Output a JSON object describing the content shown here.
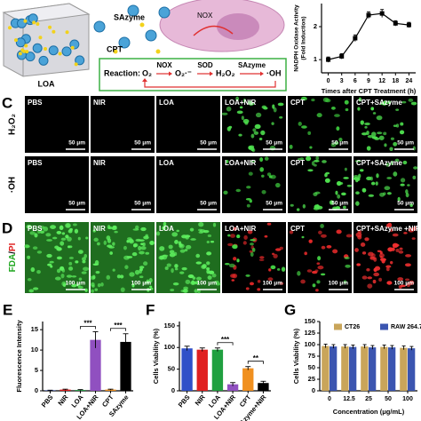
{
  "schematic": {
    "nanoparticle": "SAzyme",
    "drug": "CPT",
    "carrier": "LOA",
    "enzyme_in_cell": "NOX",
    "reaction": {
      "label": "Reaction:",
      "species": [
        "O₂",
        "O₂·⁻",
        "H₂O₂",
        "·OH"
      ],
      "enzymes": [
        "NOX",
        "SOD",
        "SAzyme"
      ]
    }
  },
  "panel_c": {
    "letter": "C",
    "rows": [
      "H₂O₂",
      "·OH"
    ],
    "columns": [
      "PBS",
      "NIR",
      "LOA",
      "LOA+NIR",
      "CPT",
      "CPT+SAzyme"
    ],
    "scale_bar": "50 μm"
  },
  "panel_d": {
    "letter": "D",
    "stain": [
      "FDA",
      "/",
      "PI"
    ],
    "columns": [
      "PBS",
      "NIR",
      "LOA",
      "LOA+NIR",
      "CPT",
      "CPT+SAzyme +NIR"
    ],
    "scale_bar": "100 μm"
  },
  "chart_data": [
    {
      "type": "line",
      "categories": [
        "0",
        "3",
        "6",
        "9",
        "12",
        "18",
        "24"
      ],
      "values": [
        1.0,
        1.1,
        1.65,
        2.35,
        2.4,
        2.1,
        2.05
      ],
      "errors": [
        0.08,
        0.08,
        0.1,
        0.1,
        0.12,
        0.08,
        0.08
      ],
      "color": "#000000",
      "x_label": "Times after CPT Treatment (h)",
      "y_label": [
        "NADPH Oxidase Activity",
        "(Fold Induction)"
      ],
      "ylim": [
        0.6,
        2.7
      ],
      "yticks": [
        1,
        2
      ]
    },
    {
      "type": "bar",
      "panel": "E",
      "categories": [
        "PBS",
        "NIR",
        "LOA",
        "LOA+NIR",
        "CPT",
        "SAzyme"
      ],
      "values": [
        0.1,
        0.3,
        0.2,
        12.5,
        0.3,
        12
      ],
      "errors": [
        0.05,
        0.1,
        0.1,
        2,
        0.1,
        2
      ],
      "colors": [
        "#3050c8",
        "#e02020",
        "#20a040",
        "#9050c0",
        "#f09020",
        "#000000"
      ],
      "y_label": "Fluorescence Intensity",
      "ylim": [
        0,
        17
      ],
      "yticks": [
        0,
        5,
        10,
        15
      ],
      "annotations": [
        "***",
        "***"
      ]
    },
    {
      "type": "bar",
      "panel": "F",
      "categories": [
        "PBS",
        "NIR",
        "LOA",
        "LOA+NIR",
        "CPT",
        "SAzyme+NIR"
      ],
      "values": [
        98,
        95,
        95,
        15,
        52,
        18
      ],
      "errors": [
        5,
        4,
        4,
        4,
        4,
        4
      ],
      "colors": [
        "#3050c8",
        "#e02020",
        "#20a040",
        "#9050c0",
        "#f09020",
        "#000000"
      ],
      "y_label": "Cells Viability (%)",
      "ylim": [
        0,
        160
      ],
      "yticks": [
        0,
        50,
        100,
        150
      ],
      "annotations": [
        "***",
        "**"
      ]
    },
    {
      "type": "grouped_bar",
      "panel": "G",
      "categories": [
        "0",
        "12.5",
        "25",
        "50",
        "100"
      ],
      "series": [
        {
          "name": "CT26",
          "color": "#c9a55a",
          "values": [
            97,
            96,
            96,
            95,
            93
          ],
          "errors": [
            4,
            4,
            4,
            4,
            4
          ]
        },
        {
          "name": "RAW 264.7",
          "color": "#3b55b0",
          "values": [
            96,
            95,
            94,
            94,
            92
          ],
          "errors": [
            4,
            4,
            4,
            4,
            4
          ]
        }
      ],
      "x_label": "Concentration (μg/mL)",
      "y_label": "Cells Viability (%)",
      "ylim": [
        0,
        150
      ],
      "yticks": [
        0,
        25,
        50,
        75,
        100,
        125,
        150
      ],
      "legend": "top"
    }
  ]
}
